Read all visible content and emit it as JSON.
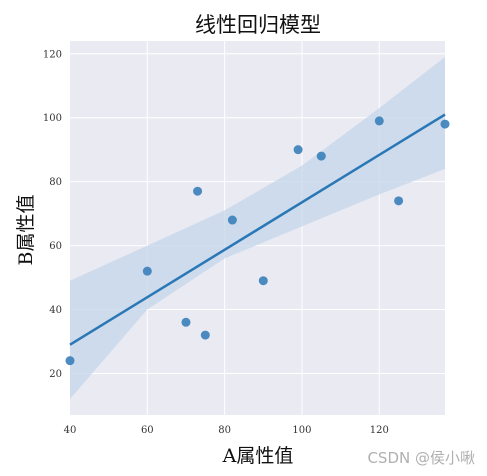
{
  "chart_data": {
    "type": "scatter",
    "title": "线性回归模型",
    "xlabel": "A属性值",
    "ylabel": "B属性值",
    "xlim": [
      40,
      137
    ],
    "ylim": [
      7,
      124
    ],
    "xticks": [
      40,
      60,
      80,
      100,
      120
    ],
    "yticks": [
      20,
      40,
      60,
      80,
      100,
      120
    ],
    "grid": true,
    "points": [
      {
        "x": 40,
        "y": 24
      },
      {
        "x": 60,
        "y": 52
      },
      {
        "x": 70,
        "y": 36
      },
      {
        "x": 73,
        "y": 77
      },
      {
        "x": 75,
        "y": 32
      },
      {
        "x": 82,
        "y": 68
      },
      {
        "x": 90,
        "y": 49
      },
      {
        "x": 99,
        "y": 90
      },
      {
        "x": 105,
        "y": 88
      },
      {
        "x": 120,
        "y": 99
      },
      {
        "x": 125,
        "y": 74
      },
      {
        "x": 137,
        "y": 98
      }
    ],
    "regression_line": {
      "x": [
        40,
        137
      ],
      "y": [
        29,
        101
      ]
    },
    "confidence_band": {
      "x": [
        40,
        60,
        80,
        100,
        120,
        137
      ],
      "upper": [
        49,
        60,
        71,
        85,
        103,
        119
      ],
      "lower": [
        12,
        40,
        56,
        66,
        76,
        84
      ]
    },
    "colors": {
      "points": "#3a7fba",
      "line": "#2a77b6",
      "band": "#c3d5ea",
      "background": "#eaeaf2",
      "grid": "#ffffff"
    }
  },
  "watermark": "CSDN @侯小啾"
}
